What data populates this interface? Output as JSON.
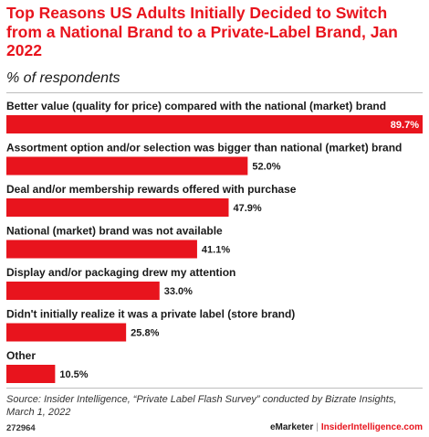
{
  "chart_data": {
    "type": "bar",
    "orientation": "horizontal",
    "title": "Top Reasons US Adults Initially Decided to Switch from a National Brand to a Private-Label Brand, Jan 2022",
    "subtitle": "% of respondents",
    "categories": [
      "Better value (quality for price) compared with the national (market) brand",
      "Assortment option and/or selection was bigger than national (market) brand",
      "Deal and/or membership rewards offered with purchase",
      "National (market) brand was not available",
      "Display and/or packaging drew my attention",
      "Didn't initially realize it was a private label (store brand)",
      "Other"
    ],
    "values": [
      89.7,
      52.0,
      47.9,
      41.1,
      33.0,
      25.8,
      10.5
    ],
    "value_labels": [
      "89.7%",
      "52.0%",
      "47.9%",
      "41.1%",
      "33.0%",
      "25.8%",
      "10.5%"
    ],
    "xlim": [
      0,
      89.7
    ],
    "bar_color": "#e8141d",
    "grid": false,
    "legend": "none"
  },
  "source": "Source: Insider Intelligence, “Private Label Flash Survey” conducted by Bizrate Insights, March 1, 2022",
  "footer": {
    "chart_id": "272964",
    "brand_left": "eMarketer",
    "separator": "|",
    "brand_right": "InsiderIntelligence.com"
  }
}
